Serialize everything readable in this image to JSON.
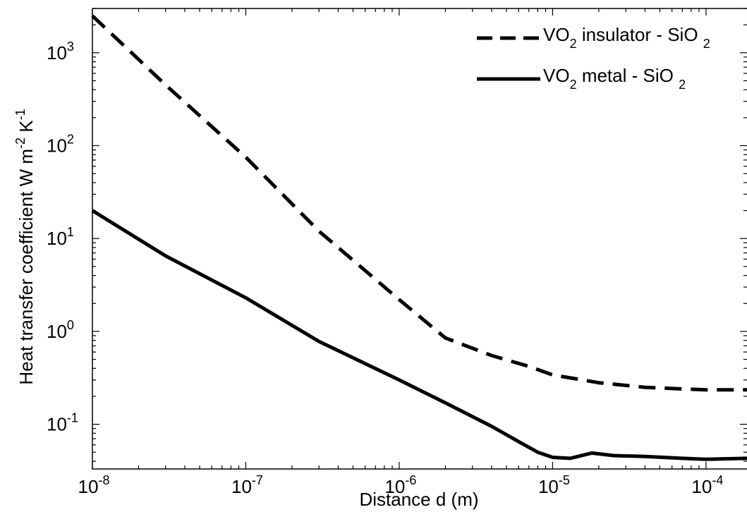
{
  "chart_data": {
    "type": "line",
    "xlabel": "Distance d (m)",
    "ylabel_main": "Heat transfer coefficient W m",
    "ylabel_mid": " K",
    "ylabel_exp1": "-2",
    "ylabel_exp2": "-1",
    "x_scale": "log",
    "y_scale": "log",
    "xlim": [
      1e-08,
      0.000185
    ],
    "ylim": [
      0.033,
      3000
    ],
    "x_ticks": [
      {
        "value": 1e-08,
        "base": "10",
        "exp": "-8"
      },
      {
        "value": 1e-07,
        "base": "10",
        "exp": "-7"
      },
      {
        "value": 1e-06,
        "base": "10",
        "exp": "-6"
      },
      {
        "value": 1e-05,
        "base": "10",
        "exp": "-5"
      },
      {
        "value": 0.0001,
        "base": "10",
        "exp": "-4"
      }
    ],
    "y_ticks": [
      {
        "value": 0.1,
        "base": "10",
        "exp": "-1"
      },
      {
        "value": 1,
        "base": "10",
        "exp": "0"
      },
      {
        "value": 10,
        "base": "10",
        "exp": "1"
      },
      {
        "value": 100,
        "base": "10",
        "exp": "2"
      },
      {
        "value": 1000,
        "base": "10",
        "exp": "3"
      }
    ],
    "grid": false,
    "legend_position": "top-right",
    "series": [
      {
        "name_main": "VO",
        "name_sub": "2",
        "name_rest": " insulator - SiO ",
        "name_sub2": "2",
        "style": "dashed",
        "color": "#000000",
        "points": [
          [
            1e-08,
            2500
          ],
          [
            3e-08,
            450
          ],
          [
            1e-07,
            75
          ],
          [
            3e-07,
            12
          ],
          [
            1e-06,
            2.2
          ],
          [
            2e-06,
            0.85
          ],
          [
            4e-06,
            0.55
          ],
          [
            7e-06,
            0.42
          ],
          [
            1e-05,
            0.34
          ],
          [
            2e-05,
            0.28
          ],
          [
            4e-05,
            0.25
          ],
          [
            7e-05,
            0.24
          ],
          [
            0.0001,
            0.235
          ],
          [
            0.000185,
            0.235
          ]
        ]
      },
      {
        "name_main": "VO",
        "name_sub": "2",
        "name_rest": " metal - SiO ",
        "name_sub2": "2",
        "style": "solid",
        "color": "#000000",
        "points": [
          [
            1e-08,
            20
          ],
          [
            3e-08,
            6.5
          ],
          [
            1e-07,
            2.3
          ],
          [
            3e-07,
            0.78
          ],
          [
            1e-06,
            0.3
          ],
          [
            2e-06,
            0.17
          ],
          [
            4e-06,
            0.095
          ],
          [
            6e-06,
            0.065
          ],
          [
            8e-06,
            0.05
          ],
          [
            1e-05,
            0.044
          ],
          [
            1.3e-05,
            0.043
          ],
          [
            1.8e-05,
            0.049
          ],
          [
            2.5e-05,
            0.046
          ],
          [
            4e-05,
            0.045
          ],
          [
            7e-05,
            0.043
          ],
          [
            0.0001,
            0.042
          ],
          [
            0.000185,
            0.043
          ]
        ]
      }
    ]
  }
}
